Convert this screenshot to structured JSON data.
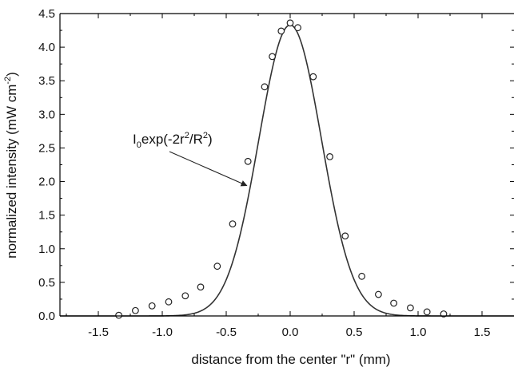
{
  "chart_data": {
    "type": "scatter",
    "xlabel": "distance from the center \"r\" (mm)",
    "ylabel": {
      "prefix": "normalized intensity (mW cm",
      "superscript": "-2",
      "suffix": ")"
    },
    "xlim": [
      -1.8,
      1.75
    ],
    "ylim": [
      0.0,
      4.5
    ],
    "x_ticks": [
      "-1.5",
      "-1.0",
      "-0.5",
      "0.0",
      "0.5",
      "1.0",
      "1.5"
    ],
    "x_tick_values": [
      -1.5,
      -1.0,
      -0.5,
      0.0,
      0.5,
      1.0,
      1.5
    ],
    "y_ticks": [
      "0.0",
      "0.5",
      "1.0",
      "1.5",
      "2.0",
      "2.5",
      "3.0",
      "3.5",
      "4.0",
      "4.5"
    ],
    "y_tick_values": [
      0.0,
      0.5,
      1.0,
      1.5,
      2.0,
      2.5,
      3.0,
      3.5,
      4.0,
      4.5
    ],
    "grid": false,
    "series": [
      {
        "kind": "markers",
        "marker": "open-circle",
        "x": [
          -1.34,
          -1.21,
          -1.08,
          -0.95,
          -0.82,
          -0.7,
          -0.57,
          -0.45,
          -0.33,
          -0.2,
          -0.14,
          -0.07,
          0.0,
          0.06,
          0.18,
          0.31,
          0.43,
          0.56,
          0.69,
          0.81,
          0.94,
          1.07,
          1.2
        ],
        "y": [
          0.01,
          0.08,
          0.15,
          0.21,
          0.3,
          0.43,
          0.74,
          1.37,
          2.3,
          3.41,
          3.86,
          4.24,
          4.36,
          4.29,
          3.56,
          2.37,
          1.19,
          0.59,
          0.32,
          0.19,
          0.12,
          0.06,
          0.03
        ]
      },
      {
        "kind": "fit-line",
        "function": "I0*exp(-2r^2/R^2)",
        "I0": 4.33,
        "R": 0.49,
        "x0": 0.0
      }
    ],
    "annotation": {
      "parts": [
        {
          "t": "I",
          "s": "base"
        },
        {
          "t": "0",
          "s": "sub"
        },
        {
          "t": "exp(-2r",
          "s": "base"
        },
        {
          "t": "2",
          "s": "sup"
        },
        {
          "t": "/R",
          "s": "base"
        },
        {
          "t": "2",
          "s": "sup"
        },
        {
          "t": ")",
          "s": "base"
        }
      ],
      "arrow_to": [
        -0.34,
        2.0
      ]
    },
    "colors": {
      "line": "#333333",
      "marker": "#222222",
      "axis": "#000000"
    }
  }
}
